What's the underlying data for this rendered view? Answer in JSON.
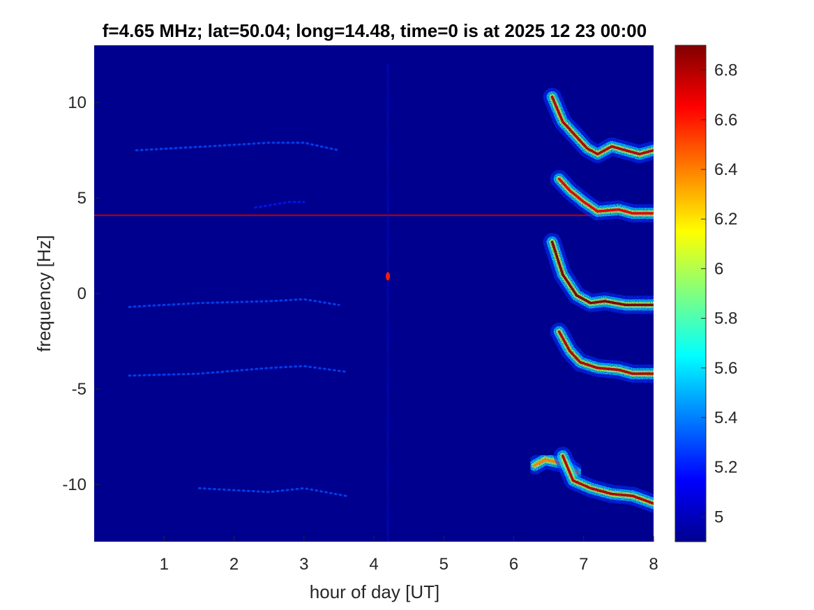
{
  "chart_data": {
    "type": "heatmap",
    "title": "f=4.65 MHz;  lat=50.04; long=14.48, time=0 is at 2025 12 23 00:00",
    "xlabel": "hour of day [UT]",
    "ylabel": "frequency [Hz]",
    "xlim": [
      0,
      8
    ],
    "ylim": [
      -13,
      13
    ],
    "xticks": [
      "1",
      "2",
      "3",
      "4",
      "5",
      "6",
      "7",
      "8"
    ],
    "yticks": [
      "10",
      "5",
      "0",
      "-5",
      "-10"
    ],
    "colorbar": {
      "colormap": "jet",
      "range": [
        4.9,
        6.9
      ],
      "ticks": [
        "6.8",
        "6.6",
        "6.4",
        "6.2",
        "6",
        "5.8",
        "5.6",
        "5.4",
        "5.2",
        "5"
      ]
    },
    "background_value": 4.95,
    "features": [
      {
        "kind": "constant-line",
        "freq": 4.1,
        "x_start": 0,
        "x_end": 8,
        "value": 6.8
      },
      {
        "kind": "vertical-streak",
        "hour": 4.2,
        "f_start": -13,
        "f_end": 12,
        "value": 5.2
      },
      {
        "kind": "blob",
        "hour": 4.2,
        "freq": 0.9,
        "value": 6.6
      },
      {
        "kind": "faint-trace",
        "points": [
          [
            0.6,
            7.5
          ],
          [
            1.6,
            7.7
          ],
          [
            2.5,
            7.9
          ],
          [
            3.0,
            7.9
          ],
          [
            3.5,
            7.5
          ]
        ],
        "value": 5.3
      },
      {
        "kind": "faint-trace",
        "points": [
          [
            2.3,
            4.5
          ],
          [
            2.8,
            4.8
          ],
          [
            3.0,
            4.8
          ]
        ],
        "value": 5.2
      },
      {
        "kind": "faint-trace",
        "points": [
          [
            0.5,
            -0.7
          ],
          [
            1.5,
            -0.5
          ],
          [
            2.5,
            -0.4
          ],
          [
            3.0,
            -0.3
          ],
          [
            3.5,
            -0.6
          ]
        ],
        "value": 5.3
      },
      {
        "kind": "faint-trace",
        "points": [
          [
            0.5,
            -4.3
          ],
          [
            1.5,
            -4.2
          ],
          [
            2.5,
            -3.9
          ],
          [
            3.0,
            -3.8
          ],
          [
            3.6,
            -4.1
          ]
        ],
        "value": 5.3
      },
      {
        "kind": "faint-trace",
        "points": [
          [
            1.5,
            -10.2
          ],
          [
            2.5,
            -10.4
          ],
          [
            3.0,
            -10.2
          ],
          [
            3.6,
            -10.6
          ]
        ],
        "value": 5.3
      },
      {
        "kind": "dispersive-trace",
        "points": [
          [
            6.55,
            10.3
          ],
          [
            6.7,
            9.0
          ],
          [
            6.9,
            8.2
          ],
          [
            7.05,
            7.6
          ],
          [
            7.2,
            7.3
          ],
          [
            7.4,
            7.7
          ],
          [
            7.6,
            7.5
          ],
          [
            7.8,
            7.3
          ],
          [
            8.0,
            7.5
          ]
        ],
        "value": 6.8
      },
      {
        "kind": "dispersive-trace",
        "points": [
          [
            6.65,
            6.0
          ],
          [
            6.8,
            5.4
          ],
          [
            7.0,
            4.8
          ],
          [
            7.2,
            4.3
          ],
          [
            7.5,
            4.4
          ],
          [
            7.7,
            4.2
          ],
          [
            8.0,
            4.2
          ]
        ],
        "value": 6.7
      },
      {
        "kind": "dispersive-trace",
        "points": [
          [
            6.55,
            2.7
          ],
          [
            6.7,
            1.0
          ],
          [
            6.9,
            -0.1
          ],
          [
            7.1,
            -0.5
          ],
          [
            7.3,
            -0.4
          ],
          [
            7.6,
            -0.6
          ],
          [
            8.0,
            -0.6
          ]
        ],
        "value": 6.9
      },
      {
        "kind": "dispersive-trace",
        "points": [
          [
            6.65,
            -2.0
          ],
          [
            6.8,
            -3.0
          ],
          [
            6.95,
            -3.6
          ],
          [
            7.2,
            -3.9
          ],
          [
            7.5,
            -4.0
          ],
          [
            7.7,
            -4.2
          ],
          [
            8.0,
            -4.2
          ]
        ],
        "value": 6.8
      },
      {
        "kind": "dispersive-trace",
        "points": [
          [
            6.3,
            -9.0
          ],
          [
            6.45,
            -8.7
          ],
          [
            6.7,
            -8.9
          ],
          [
            6.9,
            -9.4
          ]
        ],
        "value": 6.4
      },
      {
        "kind": "dispersive-trace",
        "points": [
          [
            6.7,
            -8.5
          ],
          [
            6.85,
            -9.8
          ],
          [
            7.1,
            -10.2
          ],
          [
            7.4,
            -10.5
          ],
          [
            7.7,
            -10.6
          ],
          [
            8.0,
            -11.0
          ]
        ],
        "value": 6.8
      }
    ]
  }
}
